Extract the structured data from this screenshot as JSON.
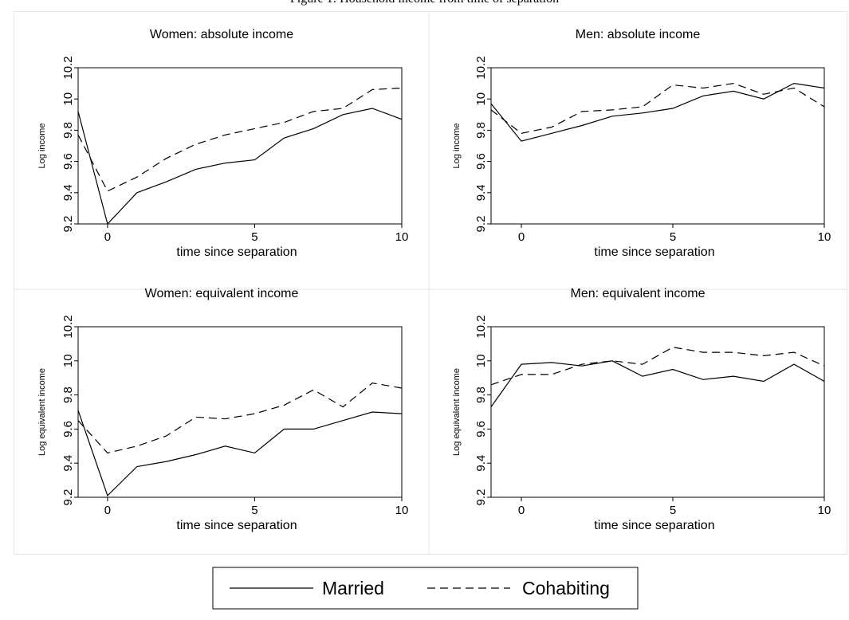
{
  "figure_caption": "Figure 1: Household income from time of separation",
  "chart_data": [
    {
      "type": "line",
      "title": "Women: absolute income",
      "xlabel": "time since separation",
      "ylabel": "Log income",
      "xlim": [
        -1,
        10
      ],
      "ylim": [
        9.2,
        10.2
      ],
      "x_ticks": [
        "0",
        "5",
        "10"
      ],
      "y_ticks": [
        "9.2",
        "9.4",
        "9.6",
        "9.8",
        "10",
        "10.2"
      ],
      "x": [
        -1,
        0,
        1,
        2,
        3,
        4,
        5,
        6,
        7,
        8,
        9,
        10
      ],
      "series": [
        {
          "name": "Married",
          "style": "solid",
          "values": [
            9.92,
            9.2,
            9.4,
            9.47,
            9.55,
            9.59,
            9.61,
            9.75,
            9.81,
            9.9,
            9.94,
            9.87
          ]
        },
        {
          "name": "Cohabiting",
          "style": "dashed",
          "values": [
            9.77,
            9.41,
            9.5,
            9.62,
            9.71,
            9.77,
            9.81,
            9.85,
            9.92,
            9.94,
            10.06,
            10.07
          ]
        }
      ]
    },
    {
      "type": "line",
      "title": "Men: absolute income",
      "xlabel": "time since separation",
      "ylabel": "Log income",
      "xlim": [
        -1,
        10
      ],
      "ylim": [
        9.2,
        10.2
      ],
      "x_ticks": [
        "0",
        "5",
        "10"
      ],
      "y_ticks": [
        "9.2",
        "9.4",
        "9.6",
        "9.8",
        "10",
        "10.2"
      ],
      "x": [
        -1,
        0,
        1,
        2,
        3,
        4,
        5,
        6,
        7,
        8,
        9,
        10
      ],
      "series": [
        {
          "name": "Married",
          "style": "solid",
          "values": [
            9.97,
            9.73,
            9.78,
            9.83,
            9.89,
            9.91,
            9.94,
            10.02,
            10.05,
            10.0,
            10.1,
            10.07
          ]
        },
        {
          "name": "Cohabiting",
          "style": "dashed",
          "values": [
            9.93,
            9.78,
            9.82,
            9.92,
            9.93,
            9.95,
            10.09,
            10.07,
            10.1,
            10.03,
            10.07,
            9.95
          ]
        }
      ]
    },
    {
      "type": "line",
      "title": "Women: equivalent income",
      "xlabel": "time since separation",
      "ylabel": "Log equivalent income",
      "xlim": [
        -1,
        10
      ],
      "ylim": [
        9.2,
        10.2
      ],
      "x_ticks": [
        "0",
        "5",
        "10"
      ],
      "y_ticks": [
        "9.2",
        "9.4",
        "9.6",
        "9.8",
        "10",
        "10.2"
      ],
      "x": [
        -1,
        0,
        1,
        2,
        3,
        4,
        5,
        6,
        7,
        8,
        9,
        10
      ],
      "series": [
        {
          "name": "Married",
          "style": "solid",
          "values": [
            9.71,
            9.21,
            9.38,
            9.41,
            9.45,
            9.5,
            9.46,
            9.6,
            9.6,
            9.65,
            9.7,
            9.69
          ]
        },
        {
          "name": "Cohabiting",
          "style": "dashed",
          "values": [
            9.65,
            9.46,
            9.5,
            9.56,
            9.67,
            9.66,
            9.69,
            9.74,
            9.83,
            9.73,
            9.87,
            9.84
          ]
        }
      ]
    },
    {
      "type": "line",
      "title": "Men: equivalent income",
      "xlabel": "time since separation",
      "ylabel": "Log equivalent income",
      "xlim": [
        -1,
        10
      ],
      "ylim": [
        9.2,
        10.2
      ],
      "x_ticks": [
        "0",
        "5",
        "10"
      ],
      "y_ticks": [
        "9.2",
        "9.4",
        "9.6",
        "9.8",
        "10",
        "10.2"
      ],
      "x": [
        -1,
        0,
        1,
        2,
        3,
        4,
        5,
        6,
        7,
        8,
        9,
        10
      ],
      "series": [
        {
          "name": "Married",
          "style": "solid",
          "values": [
            9.73,
            9.98,
            9.99,
            9.97,
            10.0,
            9.91,
            9.95,
            9.89,
            9.91,
            9.88,
            9.98,
            9.88
          ]
        },
        {
          "name": "Cohabiting",
          "style": "dashed",
          "values": [
            9.86,
            9.92,
            9.92,
            9.98,
            10.0,
            9.98,
            10.08,
            10.05,
            10.05,
            10.03,
            10.05,
            9.97
          ]
        }
      ]
    }
  ],
  "legend": {
    "position": "bottom",
    "items": [
      {
        "label": "Married",
        "style": "solid"
      },
      {
        "label": "Cohabiting",
        "style": "dashed"
      }
    ]
  }
}
